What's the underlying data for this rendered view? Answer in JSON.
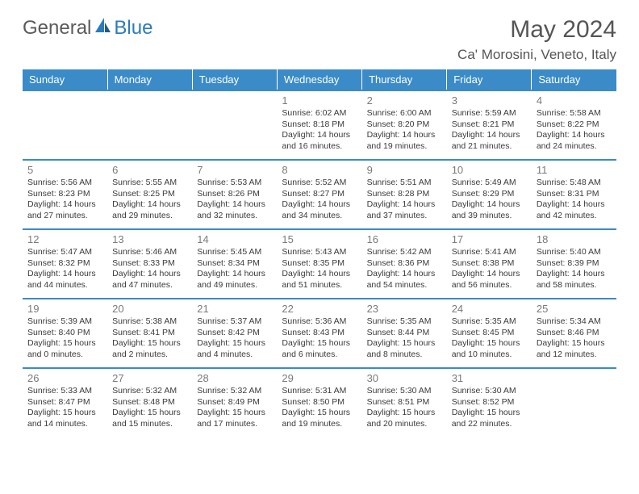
{
  "brand": {
    "part1": "General",
    "part2": "Blue"
  },
  "title": "May 2024",
  "location": "Ca' Morosini, Veneto, Italy",
  "colors": {
    "header_bg": "#3b8bc9",
    "header_text": "#ffffff",
    "row_border": "#3b8bc9",
    "daynum": "#7a7a7a",
    "body_text": "#3a3a3a",
    "background": "#ffffff",
    "logo_gray": "#5a5a5a",
    "logo_blue": "#2b7bbf"
  },
  "weekdays": [
    "Sunday",
    "Monday",
    "Tuesday",
    "Wednesday",
    "Thursday",
    "Friday",
    "Saturday"
  ],
  "weeks": [
    [
      {
        "n": "",
        "l1": "",
        "l2": "",
        "l3": "",
        "l4": ""
      },
      {
        "n": "",
        "l1": "",
        "l2": "",
        "l3": "",
        "l4": ""
      },
      {
        "n": "",
        "l1": "",
        "l2": "",
        "l3": "",
        "l4": ""
      },
      {
        "n": "1",
        "l1": "Sunrise: 6:02 AM",
        "l2": "Sunset: 8:18 PM",
        "l3": "Daylight: 14 hours",
        "l4": "and 16 minutes."
      },
      {
        "n": "2",
        "l1": "Sunrise: 6:00 AM",
        "l2": "Sunset: 8:20 PM",
        "l3": "Daylight: 14 hours",
        "l4": "and 19 minutes."
      },
      {
        "n": "3",
        "l1": "Sunrise: 5:59 AM",
        "l2": "Sunset: 8:21 PM",
        "l3": "Daylight: 14 hours",
        "l4": "and 21 minutes."
      },
      {
        "n": "4",
        "l1": "Sunrise: 5:58 AM",
        "l2": "Sunset: 8:22 PM",
        "l3": "Daylight: 14 hours",
        "l4": "and 24 minutes."
      }
    ],
    [
      {
        "n": "5",
        "l1": "Sunrise: 5:56 AM",
        "l2": "Sunset: 8:23 PM",
        "l3": "Daylight: 14 hours",
        "l4": "and 27 minutes."
      },
      {
        "n": "6",
        "l1": "Sunrise: 5:55 AM",
        "l2": "Sunset: 8:25 PM",
        "l3": "Daylight: 14 hours",
        "l4": "and 29 minutes."
      },
      {
        "n": "7",
        "l1": "Sunrise: 5:53 AM",
        "l2": "Sunset: 8:26 PM",
        "l3": "Daylight: 14 hours",
        "l4": "and 32 minutes."
      },
      {
        "n": "8",
        "l1": "Sunrise: 5:52 AM",
        "l2": "Sunset: 8:27 PM",
        "l3": "Daylight: 14 hours",
        "l4": "and 34 minutes."
      },
      {
        "n": "9",
        "l1": "Sunrise: 5:51 AM",
        "l2": "Sunset: 8:28 PM",
        "l3": "Daylight: 14 hours",
        "l4": "and 37 minutes."
      },
      {
        "n": "10",
        "l1": "Sunrise: 5:49 AM",
        "l2": "Sunset: 8:29 PM",
        "l3": "Daylight: 14 hours",
        "l4": "and 39 minutes."
      },
      {
        "n": "11",
        "l1": "Sunrise: 5:48 AM",
        "l2": "Sunset: 8:31 PM",
        "l3": "Daylight: 14 hours",
        "l4": "and 42 minutes."
      }
    ],
    [
      {
        "n": "12",
        "l1": "Sunrise: 5:47 AM",
        "l2": "Sunset: 8:32 PM",
        "l3": "Daylight: 14 hours",
        "l4": "and 44 minutes."
      },
      {
        "n": "13",
        "l1": "Sunrise: 5:46 AM",
        "l2": "Sunset: 8:33 PM",
        "l3": "Daylight: 14 hours",
        "l4": "and 47 minutes."
      },
      {
        "n": "14",
        "l1": "Sunrise: 5:45 AM",
        "l2": "Sunset: 8:34 PM",
        "l3": "Daylight: 14 hours",
        "l4": "and 49 minutes."
      },
      {
        "n": "15",
        "l1": "Sunrise: 5:43 AM",
        "l2": "Sunset: 8:35 PM",
        "l3": "Daylight: 14 hours",
        "l4": "and 51 minutes."
      },
      {
        "n": "16",
        "l1": "Sunrise: 5:42 AM",
        "l2": "Sunset: 8:36 PM",
        "l3": "Daylight: 14 hours",
        "l4": "and 54 minutes."
      },
      {
        "n": "17",
        "l1": "Sunrise: 5:41 AM",
        "l2": "Sunset: 8:38 PM",
        "l3": "Daylight: 14 hours",
        "l4": "and 56 minutes."
      },
      {
        "n": "18",
        "l1": "Sunrise: 5:40 AM",
        "l2": "Sunset: 8:39 PM",
        "l3": "Daylight: 14 hours",
        "l4": "and 58 minutes."
      }
    ],
    [
      {
        "n": "19",
        "l1": "Sunrise: 5:39 AM",
        "l2": "Sunset: 8:40 PM",
        "l3": "Daylight: 15 hours",
        "l4": "and 0 minutes."
      },
      {
        "n": "20",
        "l1": "Sunrise: 5:38 AM",
        "l2": "Sunset: 8:41 PM",
        "l3": "Daylight: 15 hours",
        "l4": "and 2 minutes."
      },
      {
        "n": "21",
        "l1": "Sunrise: 5:37 AM",
        "l2": "Sunset: 8:42 PM",
        "l3": "Daylight: 15 hours",
        "l4": "and 4 minutes."
      },
      {
        "n": "22",
        "l1": "Sunrise: 5:36 AM",
        "l2": "Sunset: 8:43 PM",
        "l3": "Daylight: 15 hours",
        "l4": "and 6 minutes."
      },
      {
        "n": "23",
        "l1": "Sunrise: 5:35 AM",
        "l2": "Sunset: 8:44 PM",
        "l3": "Daylight: 15 hours",
        "l4": "and 8 minutes."
      },
      {
        "n": "24",
        "l1": "Sunrise: 5:35 AM",
        "l2": "Sunset: 8:45 PM",
        "l3": "Daylight: 15 hours",
        "l4": "and 10 minutes."
      },
      {
        "n": "25",
        "l1": "Sunrise: 5:34 AM",
        "l2": "Sunset: 8:46 PM",
        "l3": "Daylight: 15 hours",
        "l4": "and 12 minutes."
      }
    ],
    [
      {
        "n": "26",
        "l1": "Sunrise: 5:33 AM",
        "l2": "Sunset: 8:47 PM",
        "l3": "Daylight: 15 hours",
        "l4": "and 14 minutes."
      },
      {
        "n": "27",
        "l1": "Sunrise: 5:32 AM",
        "l2": "Sunset: 8:48 PM",
        "l3": "Daylight: 15 hours",
        "l4": "and 15 minutes."
      },
      {
        "n": "28",
        "l1": "Sunrise: 5:32 AM",
        "l2": "Sunset: 8:49 PM",
        "l3": "Daylight: 15 hours",
        "l4": "and 17 minutes."
      },
      {
        "n": "29",
        "l1": "Sunrise: 5:31 AM",
        "l2": "Sunset: 8:50 PM",
        "l3": "Daylight: 15 hours",
        "l4": "and 19 minutes."
      },
      {
        "n": "30",
        "l1": "Sunrise: 5:30 AM",
        "l2": "Sunset: 8:51 PM",
        "l3": "Daylight: 15 hours",
        "l4": "and 20 minutes."
      },
      {
        "n": "31",
        "l1": "Sunrise: 5:30 AM",
        "l2": "Sunset: 8:52 PM",
        "l3": "Daylight: 15 hours",
        "l4": "and 22 minutes."
      },
      {
        "n": "",
        "l1": "",
        "l2": "",
        "l3": "",
        "l4": ""
      }
    ]
  ]
}
